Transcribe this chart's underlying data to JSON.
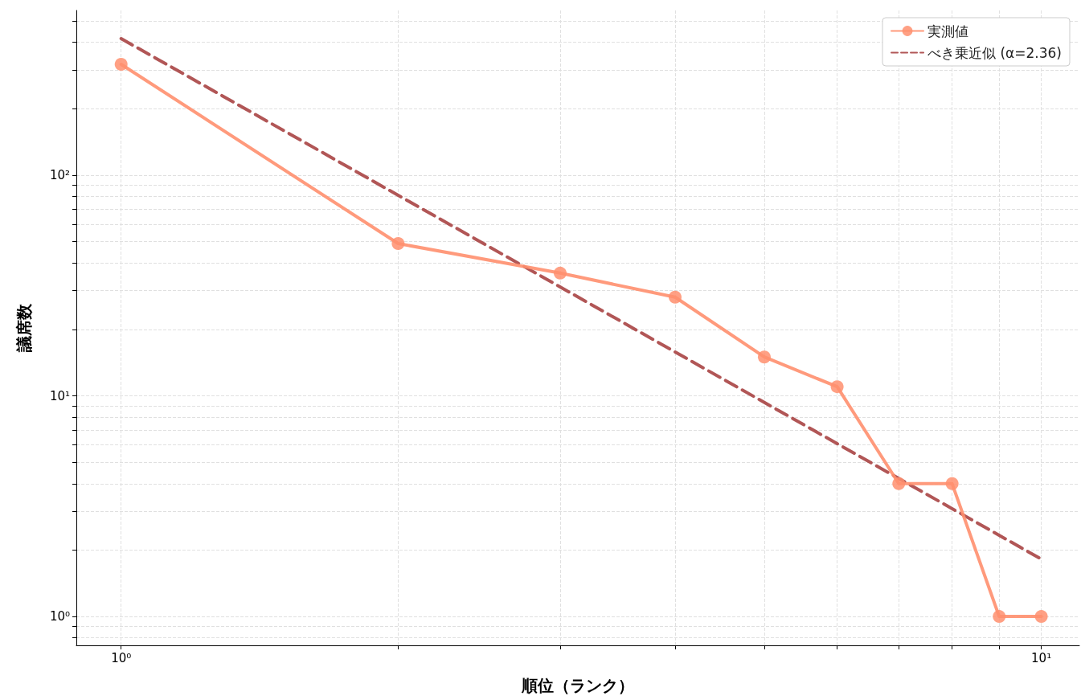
{
  "chart_data": {
    "type": "line",
    "xlabel": "順位（ランク）",
    "ylabel": "議席数",
    "log": "xy",
    "grid": true,
    "legend": "top right",
    "xlim": [
      0.894,
      11.0
    ],
    "ylim": [
      0.74,
      558
    ],
    "xticks": [
      {
        "value": 1,
        "label": "10⁰"
      },
      {
        "value": 2,
        "label": null
      },
      {
        "value": 3,
        "label": null
      },
      {
        "value": 4,
        "label": null
      },
      {
        "value": 5,
        "label": null
      },
      {
        "value": 6,
        "label": null
      },
      {
        "value": 7,
        "label": null
      },
      {
        "value": 8,
        "label": null
      },
      {
        "value": 9,
        "label": null
      },
      {
        "value": 10,
        "label": "10¹"
      }
    ],
    "yticks": [
      {
        "value": 0.8,
        "label": null
      },
      {
        "value": 0.9,
        "label": null
      },
      {
        "value": 1,
        "label": "10⁰"
      },
      {
        "value": 2,
        "label": null
      },
      {
        "value": 3,
        "label": null
      },
      {
        "value": 4,
        "label": null
      },
      {
        "value": 5,
        "label": null
      },
      {
        "value": 6,
        "label": null
      },
      {
        "value": 7,
        "label": null
      },
      {
        "value": 8,
        "label": null
      },
      {
        "value": 9,
        "label": null
      },
      {
        "value": 10,
        "label": "10¹"
      },
      {
        "value": 20,
        "label": null
      },
      {
        "value": 30,
        "label": null
      },
      {
        "value": 40,
        "label": null
      },
      {
        "value": 50,
        "label": null
      },
      {
        "value": 60,
        "label": null
      },
      {
        "value": 70,
        "label": null
      },
      {
        "value": 80,
        "label": null
      },
      {
        "value": 90,
        "label": null
      },
      {
        "value": 100,
        "label": "10²"
      },
      {
        "value": 200,
        "label": null
      },
      {
        "value": 300,
        "label": null
      },
      {
        "value": 400,
        "label": null
      },
      {
        "value": 500,
        "label": null
      }
    ],
    "series": [
      {
        "name": "実測値",
        "color": "#ff8f6e",
        "marker": "circle",
        "line_style": "solid",
        "x": [
          1,
          2,
          3,
          4,
          5,
          6,
          7,
          8,
          9,
          10
        ],
        "values": [
          318,
          49,
          36,
          28,
          15,
          11,
          4,
          4,
          1,
          1
        ]
      },
      {
        "name": "べき乗近似 (α=2.36)",
        "color": "#a84444",
        "marker": "none",
        "line_style": "dashed",
        "x": [
          1,
          10
        ],
        "values": [
          416,
          1.82
        ]
      }
    ]
  }
}
